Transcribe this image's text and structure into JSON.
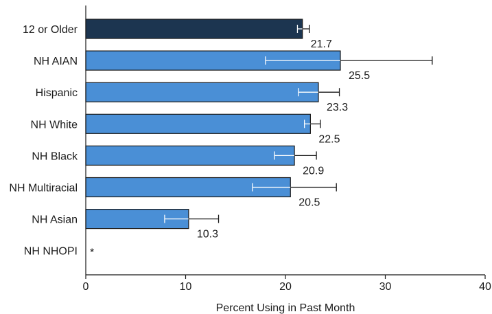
{
  "chart_data": {
    "type": "bar",
    "orientation": "horizontal",
    "title": "",
    "xlabel": "Percent Using in Past Month",
    "ylabel": "",
    "xlim": [
      0,
      40
    ],
    "x_ticks": [
      0,
      10,
      20,
      30,
      40
    ],
    "grid": false,
    "legend": "none",
    "categories": [
      "12 or Older",
      "NH AIAN",
      "Hispanic",
      "NH White",
      "NH Black",
      "NH Multiracial",
      "NH Asian",
      "NH NHOPI"
    ],
    "values": [
      21.7,
      25.5,
      23.3,
      22.5,
      20.9,
      20.5,
      10.3,
      null
    ],
    "value_labels": [
      "21.7",
      "25.5",
      "23.3",
      "22.5",
      "20.9",
      "20.5",
      "10.3",
      "*"
    ],
    "ci_low": [
      21.2,
      18.0,
      21.3,
      21.9,
      18.9,
      16.7,
      7.9,
      null
    ],
    "ci_high": [
      22.4,
      34.7,
      25.4,
      23.5,
      23.1,
      25.1,
      13.3,
      null
    ],
    "colors": [
      "#1c3550",
      "#4a8fd6",
      "#4a8fd6",
      "#4a8fd6",
      "#4a8fd6",
      "#4a8fd6",
      "#4a8fd6",
      "#4a8fd6"
    ]
  }
}
